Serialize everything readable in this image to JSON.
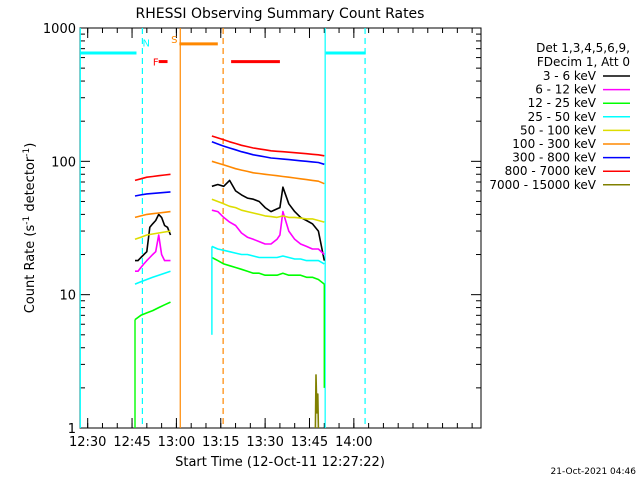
{
  "chart_data": {
    "type": "line",
    "title": "RHESSI Observing Summary Count Rates",
    "xlabel": "Start Time (12-Oct-11 12:27:22)",
    "ylabel_parts": [
      "Count Rate (s",
      "-1",
      " detector",
      "-1",
      ")"
    ],
    "y_scale": "log",
    "ylim": [
      1,
      1000
    ],
    "y_ticks": [
      1,
      10,
      100,
      1000
    ],
    "y_tick_labels": [
      "1",
      "10",
      "100",
      "1000"
    ],
    "xlim_min": [
      747.4,
      883
    ],
    "x_ticks_min": [
      750,
      765,
      780,
      795,
      810,
      825,
      840
    ],
    "x_tick_labels": [
      "12:30",
      "12:45",
      "13:00",
      "13:15",
      "13:30",
      "13:45",
      "14:00"
    ],
    "legend_header": [
      "Det 1,3,4,5,6,9,",
      "FDecim 1, Att 0"
    ],
    "stamp": "21-Oct-2021 04:46",
    "series": [
      {
        "name": "3 - 6 keV",
        "color": "#000000",
        "segments": [
          {
            "x": [
              766,
              767,
              768,
              769,
              770,
              771,
              772,
              773,
              774,
              775,
              776,
              777,
              778
            ],
            "y": [
              18,
              18,
              19,
              20,
              21,
              32,
              34,
              36,
              40,
              38,
              33,
              32,
              28
            ]
          },
          {
            "x": [
              792,
              794,
              796,
              798,
              800,
              802,
              804,
              806,
              808,
              810,
              812,
              814,
              815,
              816,
              818,
              820,
              822,
              824,
              826,
              828,
              830
            ],
            "y": [
              65,
              67,
              65,
              72,
              60,
              56,
              53,
              52,
              50,
              45,
              42,
              44,
              45,
              64,
              48,
              42,
              38,
              36,
              34,
              30,
              18
            ]
          }
        ]
      },
      {
        "name": "6 - 12 keV",
        "color": "#ff00ff",
        "segments": [
          {
            "x": [
              766,
              767,
              768,
              769,
              770,
              771,
              772,
              773,
              774,
              775,
              776,
              777,
              778
            ],
            "y": [
              15,
              15,
              16,
              17,
              18,
              19,
              20,
              21,
              28,
              20,
              18,
              18,
              18
            ]
          },
          {
            "x": [
              792,
              794,
              796,
              798,
              800,
              802,
              804,
              806,
              808,
              810,
              812,
              814,
              815,
              816,
              818,
              820,
              822,
              824,
              826,
              828,
              830
            ],
            "y": [
              43,
              42,
              38,
              35,
              33,
              29,
              27,
              26,
              25,
              24,
              24,
              26,
              28,
              42,
              30,
              26,
              24,
              23,
              22,
              22,
              20
            ]
          }
        ]
      },
      {
        "name": "12 - 25 keV",
        "color": "#00ff00",
        "segments": [
          {
            "x": [
              766,
              768,
              770,
              772,
              774,
              776,
              778
            ],
            "y": [
              6.5,
              7,
              7.3,
              7.6,
              8,
              8.4,
              8.8
            ]
          },
          {
            "x": [
              792,
              794,
              796,
              798,
              800,
              802,
              804,
              806,
              808,
              810,
              812,
              814,
              816,
              818,
              820,
              822,
              824,
              826,
              828,
              830
            ],
            "y": [
              19,
              18,
              17,
              16.5,
              16,
              15.5,
              15,
              14.5,
              14.5,
              14,
              14,
              14,
              14.5,
              14,
              14,
              14,
              13.5,
              13.5,
              13,
              12
            ]
          }
        ]
      },
      {
        "name": "25 - 50 keV",
        "color": "#00ffff",
        "segments": [
          {
            "x": [
              766,
              768,
              770,
              772,
              774,
              776,
              778
            ],
            "y": [
              12,
              12.5,
              13,
              13.5,
              14,
              14.5,
              15
            ]
          },
          {
            "x": [
              792,
              794,
              796,
              798,
              800,
              802,
              804,
              806,
              808,
              810,
              812,
              814,
              816,
              818,
              820,
              822,
              824,
              826,
              828,
              830
            ],
            "y": [
              23,
              22,
              21.5,
              21,
              20.5,
              20,
              20,
              19.5,
              19,
              19,
              19,
              19,
              19.5,
              19,
              18.5,
              18.5,
              18,
              18,
              18,
              17
            ]
          }
        ]
      },
      {
        "name": "50 - 100 keV",
        "color": "#dddd00",
        "segments": [
          {
            "x": [
              766,
              768,
              770,
              772,
              774,
              776,
              778
            ],
            "y": [
              26,
              27,
              28,
              28.5,
              29,
              29.5,
              30
            ]
          },
          {
            "x": [
              792,
              794,
              796,
              798,
              800,
              802,
              804,
              806,
              808,
              810,
              812,
              814,
              816,
              818,
              820,
              822,
              824,
              826,
              828,
              830
            ],
            "y": [
              52,
              50,
              48,
              46,
              45,
              43,
              42,
              41,
              40,
              39,
              38.5,
              38,
              39,
              38,
              38,
              37.5,
              37,
              37,
              36,
              35
            ]
          }
        ]
      },
      {
        "name": "100 - 300 keV",
        "color": "#ff8800",
        "segments": [
          {
            "x": [
              766,
              768,
              770,
              772,
              774,
              776,
              778
            ],
            "y": [
              38,
              39,
              40,
              40.5,
              41,
              41.5,
              42
            ]
          },
          {
            "x": [
              792,
              794,
              796,
              798,
              800,
              802,
              804,
              806,
              808,
              810,
              812,
              814,
              816,
              818,
              820,
              822,
              824,
              826,
              828,
              830
            ],
            "y": [
              100,
              97,
              94,
              91,
              88,
              86,
              84,
              82,
              81,
              80,
              79,
              78,
              77,
              76,
              75,
              74,
              73,
              72,
              71,
              68
            ]
          }
        ]
      },
      {
        "name": "300 - 800 keV",
        "color": "#0000ff",
        "segments": [
          {
            "x": [
              766,
              768,
              770,
              772,
              774,
              776,
              778
            ],
            "y": [
              55,
              56,
              57,
              57.5,
              58,
              58.5,
              59
            ]
          },
          {
            "x": [
              792,
              794,
              796,
              798,
              800,
              802,
              804,
              806,
              808,
              810,
              812,
              814,
              816,
              818,
              820,
              822,
              824,
              826,
              828,
              830
            ],
            "y": [
              140,
              135,
              130,
              126,
              122,
              118,
              115,
              112,
              110,
              108,
              106,
              105,
              104,
              103,
              102,
              101,
              100,
              99,
              98,
              95
            ]
          }
        ]
      },
      {
        "name": "800 - 7000 keV",
        "color": "#ff0000",
        "segments": [
          {
            "x": [
              766,
              768,
              770,
              772,
              774,
              776,
              778
            ],
            "y": [
              72,
              74,
              76,
              77,
              78,
              79,
              80
            ]
          },
          {
            "x": [
              792,
              794,
              796,
              798,
              800,
              802,
              804,
              806,
              808,
              810,
              812,
              814,
              816,
              818,
              820,
              822,
              824,
              826,
              828,
              830
            ],
            "y": [
              155,
              150,
              145,
              140,
              136,
              132,
              129,
              126,
              124,
              122,
              120,
              119,
              118,
              117,
              116,
              115,
              114,
              113,
              112,
              110
            ]
          }
        ]
      },
      {
        "name": "7000 - 15000 keV",
        "color": "#808000",
        "segments": [
          {
            "x": [
              827.0,
              827.2,
              827.5,
              827.8,
              828.0
            ],
            "y": [
              1,
              2.5,
              1.3,
              1.8,
              1
            ]
          }
        ]
      }
    ],
    "entry_exit_edges": [
      {
        "series": "12 - 25 keV",
        "x": 766,
        "y_from": 1,
        "y_to": 6.5
      },
      {
        "series": "12 - 25 keV",
        "x": 830,
        "y_from": 12,
        "y_to": 2
      },
      {
        "series": "25 - 50 keV",
        "x": 792,
        "y_from": 5,
        "y_to": 23
      }
    ],
    "orbit_markers": [
      {
        "type": "flag",
        "x": [
          747.4,
          766.5
        ],
        "y": 650,
        "color": "#00ffff"
      },
      {
        "type": "flag",
        "x": [
          830.5,
          844
        ],
        "y": 650,
        "color": "#00ffff"
      },
      {
        "type": "flag",
        "x": [
          781,
          794
        ],
        "y": 760,
        "color": "#ff8800"
      },
      {
        "type": "flag",
        "x": [
          774,
          777
        ],
        "y": 560,
        "color": "#ff0000"
      },
      {
        "type": "flag",
        "x": [
          798.5,
          815
        ],
        "y": 560,
        "color": "#ff0000"
      },
      {
        "type": "vline",
        "x": 768.5,
        "style": "dashed",
        "color": "#00ffff"
      },
      {
        "type": "vline",
        "x": 843.8,
        "style": "dashed",
        "color": "#00ffff"
      },
      {
        "type": "vline",
        "x": 795.8,
        "style": "dashed",
        "color": "#ff8800"
      },
      {
        "type": "vline",
        "x": 747.5,
        "style": "solid",
        "color": "#00ffff"
      },
      {
        "type": "vline",
        "x": 830.3,
        "style": "solid",
        "color": "#00ffff"
      },
      {
        "type": "vline",
        "x": 781.3,
        "style": "solid",
        "color": "#ff8800"
      }
    ],
    "flag_labels": [
      {
        "text": "N",
        "x": 769.8,
        "y": 780,
        "color": "#00ffff"
      },
      {
        "text": "S",
        "x": 779.3,
        "y": 830,
        "color": "#ff8800"
      },
      {
        "text": "F",
        "x": 773.0,
        "y": 560,
        "color": "#ff0000"
      }
    ]
  }
}
